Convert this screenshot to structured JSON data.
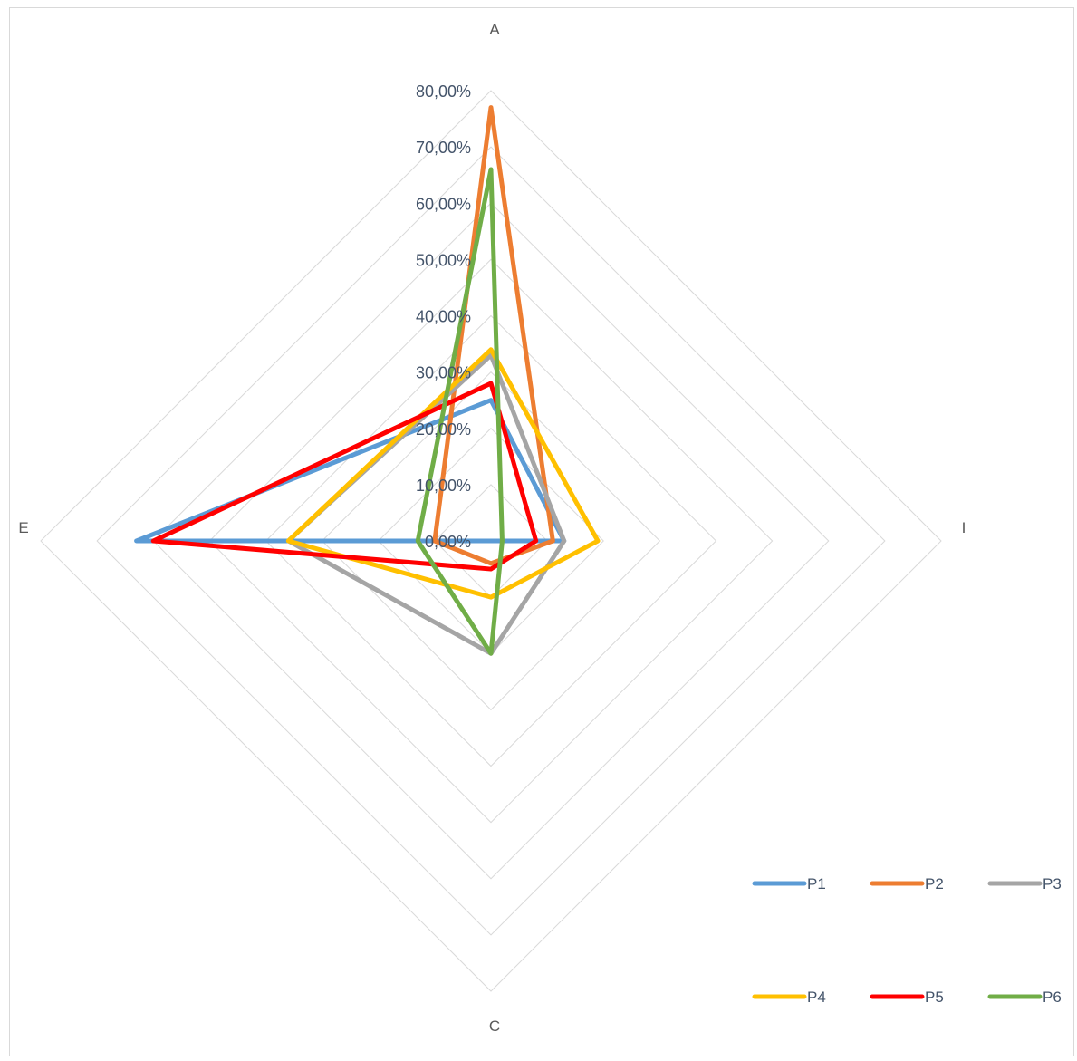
{
  "chart_data": {
    "type": "radar",
    "title": "",
    "axes": [
      "A",
      "I",
      "C",
      "E"
    ],
    "rlim": [
      0,
      0.8
    ],
    "ticks": [
      "0,00%",
      "10,00%",
      "20,00%",
      "30,00%",
      "40,00%",
      "50,00%",
      "60,00%",
      "70,00%",
      "80,00%"
    ],
    "grid": true,
    "legend_position": "bottom-right",
    "series": [
      {
        "name": "P1",
        "color": "#5b9bd5",
        "values": [
          0.25,
          0.13,
          0.0,
          0.63
        ]
      },
      {
        "name": "P2",
        "color": "#ed7d31",
        "values": [
          0.77,
          0.11,
          0.04,
          0.1
        ]
      },
      {
        "name": "P3",
        "color": "#a5a5a5",
        "values": [
          0.33,
          0.13,
          0.2,
          0.36
        ]
      },
      {
        "name": "P4",
        "color": "#ffc000",
        "values": [
          0.34,
          0.19,
          0.1,
          0.36
        ]
      },
      {
        "name": "P5",
        "color": "#ff0000",
        "values": [
          0.28,
          0.08,
          0.05,
          0.6
        ]
      },
      {
        "name": "P6",
        "color": "#70ad47",
        "values": [
          0.66,
          0.02,
          0.2,
          0.13
        ]
      }
    ]
  }
}
